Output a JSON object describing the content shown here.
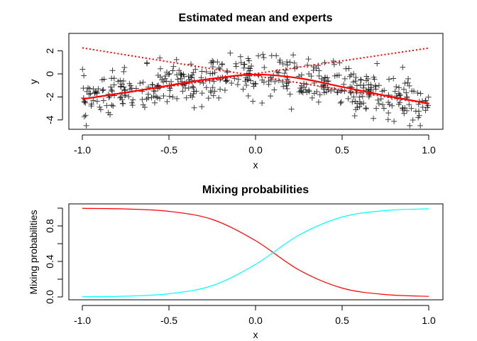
{
  "chart_data": [
    {
      "type": "scatter",
      "title": "Estimated mean and experts",
      "xlabel": "x",
      "ylabel": "y",
      "xlim": [
        -1.0,
        1.0
      ],
      "ylim": [
        -4.5,
        3.2
      ],
      "xticks": [
        "-1.0",
        "-0.5",
        "0.0",
        "0.5",
        "1.0"
      ],
      "yticks": [
        "-4",
        "-2",
        "0",
        "2"
      ],
      "grid": false,
      "point_marker": "plus",
      "point_color": "#000000",
      "mean": {
        "color": "#ff0000",
        "style": "solid",
        "x": [
          -1,
          -0.75,
          -0.5,
          -0.25,
          0,
          0.25,
          0.5,
          0.75,
          1
        ],
        "y": [
          -2.19,
          -1.62,
          -1.01,
          -0.41,
          -0.05,
          -0.37,
          -1.13,
          -1.89,
          -2.57
        ]
      },
      "experts": [
        {
          "color": "#ff0000",
          "style": "dotted",
          "x": [
            -1,
            1
          ],
          "y": [
            2.26,
            -2.6
          ]
        },
        {
          "color": "#ff0000",
          "style": "dotted",
          "x": [
            -1,
            1
          ],
          "y": [
            -2.2,
            2.24
          ]
        }
      ]
    },
    {
      "type": "line",
      "title": "Mixing probabilities",
      "xlabel": "x",
      "ylabel": "Mixing probabilities",
      "xlim": [
        -1.0,
        1.0
      ],
      "ylim": [
        0,
        1
      ],
      "xticks": [
        "-1.0",
        "-0.5",
        "0.0",
        "0.5",
        "1.0"
      ],
      "yticks": [
        "0.0",
        "0.4",
        "0.8"
      ],
      "grid": false,
      "x": [
        -1,
        -0.75,
        -0.5,
        -0.25,
        0,
        0.25,
        0.5,
        0.75,
        1
      ],
      "series": [
        {
          "color": "#ff0000",
          "values": [
            0.998,
            0.991,
            0.964,
            0.873,
            0.634,
            0.305,
            0.1,
            0.027,
            0.007
          ]
        },
        {
          "color": "#00ffff",
          "values": [
            0.002,
            0.009,
            0.036,
            0.127,
            0.366,
            0.695,
            0.9,
            0.973,
            0.993
          ]
        }
      ]
    }
  ]
}
